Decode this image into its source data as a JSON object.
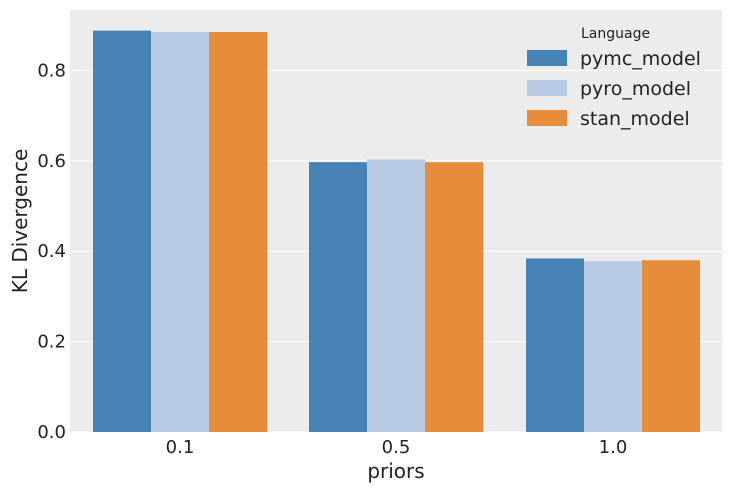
{
  "chart_data": {
    "type": "bar",
    "xlabel": "priors",
    "ylabel": "KL Divergence",
    "categories": [
      "0.1",
      "0.5",
      "1.0"
    ],
    "series": [
      {
        "name": "pymc_model",
        "values": [
          0.888,
          0.597,
          0.384
        ],
        "color": "#4682b4"
      },
      {
        "name": "pyro_model",
        "values": [
          0.885,
          0.603,
          0.378
        ],
        "color": "#b9cbe4"
      },
      {
        "name": "stan_model",
        "values": [
          0.885,
          0.597,
          0.38
        ],
        "color": "#e68d3c"
      }
    ],
    "ylim": [
      0,
      0.9
    ],
    "yticks": [
      "0.0",
      "0.2",
      "0.4",
      "0.6",
      "0.8"
    ],
    "legend": {
      "title": "Language",
      "position": "top-right"
    },
    "grid": true,
    "background": "#ececec",
    "gridline_color": "#ffffff"
  }
}
